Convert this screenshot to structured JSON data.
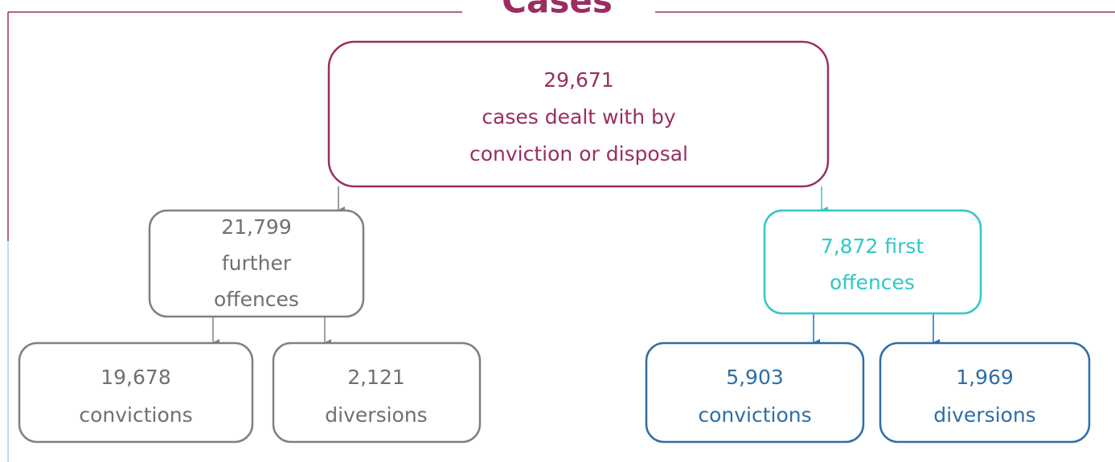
{
  "title": "Cases",
  "nodes": [
    {
      "lines": [
        "29,671",
        "cases dealt with by",
        "conviction or disposal"
      ]
    },
    {
      "lines": [
        "21,799",
        "further",
        "offences"
      ]
    },
    {
      "lines": [
        "7,872 first",
        "offences"
      ]
    },
    {
      "lines": [
        "19,678",
        "convictions"
      ]
    },
    {
      "lines": [
        "2,121",
        "diversions"
      ]
    },
    {
      "lines": [
        "5,903",
        "convictions"
      ]
    },
    {
      "lines": [
        "1,969",
        "diversions"
      ]
    }
  ]
}
